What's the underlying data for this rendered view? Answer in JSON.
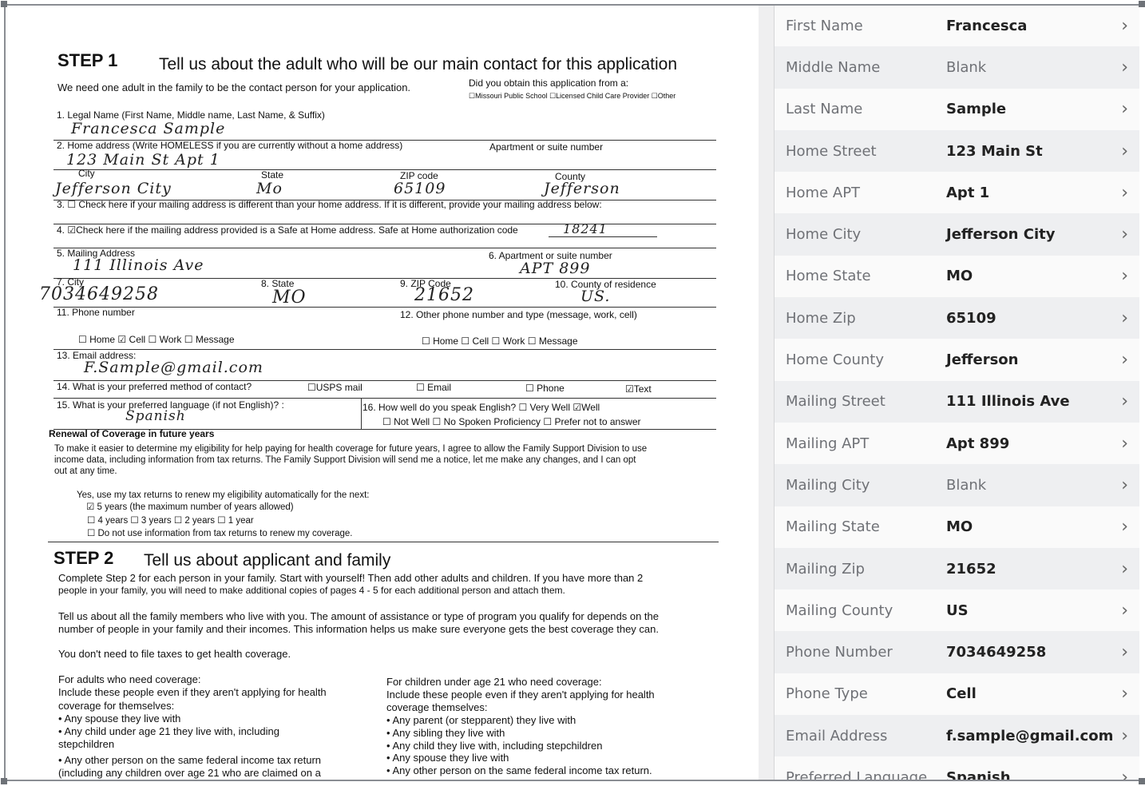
{
  "form": {
    "step1_label": "STEP 1",
    "step1_title": "Tell us about the adult who will be our main contact for this application",
    "intro": "We need one adult in the family to be the contact person for your application.",
    "obtained_q": "Did you obtain this application from a:",
    "obtained_opts": "☐Missouri Public School  ☐Licensed Child  Care Provider  ☐Other",
    "q1": "1.    Legal Name (First Name, Middle name, Last Name, & Suffix)",
    "a1": "Francesca Sample",
    "q2": "2.    Home address (Write HOMELESS if you are currently without a home address)",
    "q2b": "Apartment or suite number",
    "a2": "123 Main St   Apt 1",
    "city_l": "City",
    "state_l": "State",
    "zip_l": "ZIP code",
    "county_l": "County",
    "a_city": "Jefferson City",
    "a_state": "Mo",
    "a_zip": "65109",
    "a_county": "Jefferson",
    "q3": "3.    ☐ Check here if your mailing address is different than your home address.  If it is different, provide your mailing address below:",
    "q4": "4.    ☑Check here if the mailing address provided is a Safe at Home address. Safe at Home authorization code",
    "a4": "18241",
    "q5": "5.    Mailing Address",
    "a5": "111 Illinois Ave",
    "q6": "6.    Apartment or suite number",
    "a6": "APT 899",
    "q7": "7.    City",
    "a7": "7034649258",
    "q8": "8.    State",
    "a8": "MO",
    "q9": "9.    ZIP Code",
    "a9": "21652",
    "q10": "10.   County of residence",
    "a10": "US.",
    "q11": "11.   Phone number",
    "q12": "12.   Other phone number and type (message, work, cell)",
    "phone_types1": "☐ Home  ☑ Cell  ☐ Work  ☐ Message",
    "phone_types2": "☐ Home  ☐ Cell  ☐ Work  ☐ Message",
    "q13": "13.   Email address:",
    "a13": "F.Sample@gmail.com",
    "q14": "14.   What is your preferred method of contact?",
    "c_usps": "☐USPS mail",
    "c_email": "☐  Email",
    "c_phone": "☐ Phone",
    "c_text": "☑Text",
    "q15": "15.   What is your preferred language (if not English)? :",
    "a15": "Spanish",
    "q16": "16.  How well do you speak English?    ☐  Very Well    ☑Well",
    "q16b": "☐ Not Well     ☐ No Spoken Proficiency        ☐ Prefer not to answer",
    "renew_title": "Renewal of Coverage in future years",
    "renew_p1": "To make it easier to determine my eligibility for help paying for health coverage for future years, I agree to allow the Family Support Division to use",
    "renew_p2": "income data, including information from tax returns. The Family Support Division will send me a notice, let me make any changes, and I can opt",
    "renew_p3": "out at any time.",
    "renew_yes": "Yes, use my tax returns to renew my eligibility automatically for the next:",
    "renew_5": "☑ 5 years (the maximum number of years allowed)",
    "renew_other": "☐ 4 years   ☐ 3 years   ☐ 2 years   ☐ 1 year",
    "renew_no": "☐ Do not use information from tax returns to renew my coverage.",
    "step2_label": "STEP 2",
    "step2_title": "Tell us about applicant and family",
    "s2_p1": "Complete Step 2 for each person in your family. Start with yourself!  Then add other adults and children. If you have more than 2",
    "s2_p2": "people in your family, you will need to make additional copies of pages 4 - 5 for each additional person and attach them.",
    "s2_p3": "Tell us about all the family members who live with you. The amount of assistance or type of program you qualify for depends on the",
    "s2_p4": "number of people in your family and their incomes. This information helps us make sure everyone gets the best coverage they can.",
    "s2_p5": "You don't need to file taxes to get health coverage.",
    "left_col": [
      "For adults who need coverage:",
      "Include these people even if they aren't applying for health",
      "coverage for themselves:",
      "• Any spouse they live with",
      "• Any child under age 21 they live with, including",
      "stepchildren",
      "• Any other person on the same federal income tax return",
      "(including any children over age 21 who are claimed on a"
    ],
    "right_col": [
      "For children under age 21 who need coverage:",
      "Include these people even if they aren't applying for health",
      "coverage themselves:",
      "• Any parent (or stepparent) they live with",
      "• Any sibling they live with",
      "• Any child they live with, including stepchildren",
      "• Any spouse they live with",
      "• Any other person on the same federal income tax return."
    ]
  },
  "fields": [
    {
      "label": "First Name",
      "value": "Francesca"
    },
    {
      "label": "Middle Name",
      "value": "Blank",
      "blank": true
    },
    {
      "label": "Last Name",
      "value": "Sample"
    },
    {
      "label": "Home Street",
      "value": "123 Main St"
    },
    {
      "label": "Home APT",
      "value": "Apt 1"
    },
    {
      "label": "Home City",
      "value": "Jefferson City"
    },
    {
      "label": "Home State",
      "value": "MO"
    },
    {
      "label": "Home Zip",
      "value": "65109"
    },
    {
      "label": "Home County",
      "value": "Jefferson"
    },
    {
      "label": "Mailing Street",
      "value": "111 Illinois Ave"
    },
    {
      "label": "Mailing APT",
      "value": "Apt 899"
    },
    {
      "label": "Mailing City",
      "value": "Blank",
      "blank": true
    },
    {
      "label": "Mailing State",
      "value": "MO"
    },
    {
      "label": "Mailing Zip",
      "value": "21652"
    },
    {
      "label": "Mailing County",
      "value": "US"
    },
    {
      "label": "Phone Number",
      "value": "7034649258"
    },
    {
      "label": "Phone Type",
      "value": "Cell"
    },
    {
      "label": "Email Address",
      "value": "f.sample@gmail.com"
    },
    {
      "label": "Preferred Language",
      "value": "Spanish"
    }
  ],
  "icons": {
    "row_chevron": "chevron-right-icon"
  }
}
